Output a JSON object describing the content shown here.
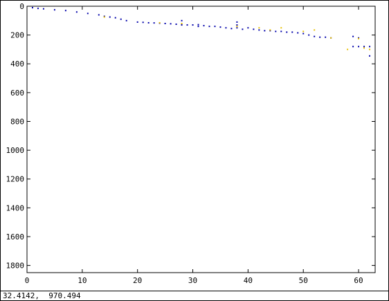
{
  "status_bar": {
    "coords": "32.4142,  970.494"
  },
  "chart_data": {
    "type": "scatter",
    "title": "",
    "xlabel": "",
    "ylabel": "",
    "xlim": [
      0,
      63
    ],
    "ylim": [
      0,
      1850
    ],
    "y_inverted": true,
    "grid": false,
    "x_ticks": [
      0,
      10,
      20,
      30,
      40,
      50,
      60
    ],
    "y_ticks": [
      0,
      200,
      400,
      600,
      800,
      1000,
      1200,
      1400,
      1600,
      1800
    ],
    "series": [
      {
        "color": "#0000aa",
        "marker": "pixel",
        "points": [
          [
            1,
            10
          ],
          [
            2,
            15
          ],
          [
            3,
            18
          ],
          [
            5,
            25
          ],
          [
            7,
            30
          ],
          [
            9,
            40
          ],
          [
            11,
            50
          ],
          [
            13,
            60
          ],
          [
            14,
            70
          ],
          [
            15,
            75
          ],
          [
            16,
            80
          ],
          [
            17,
            90
          ],
          [
            18,
            100
          ],
          [
            20,
            110
          ],
          [
            21,
            112
          ],
          [
            22,
            115
          ],
          [
            23,
            116
          ],
          [
            24,
            118
          ],
          [
            25,
            120
          ],
          [
            26,
            122
          ],
          [
            27,
            125
          ],
          [
            28,
            100
          ],
          [
            28,
            125
          ],
          [
            28,
            130
          ],
          [
            29,
            130
          ],
          [
            30,
            130
          ],
          [
            31,
            128
          ],
          [
            31,
            140
          ],
          [
            32,
            135
          ],
          [
            33,
            140
          ],
          [
            34,
            140
          ],
          [
            35,
            145
          ],
          [
            36,
            150
          ],
          [
            37,
            155
          ],
          [
            38,
            110
          ],
          [
            38,
            130
          ],
          [
            38,
            150
          ],
          [
            39,
            160
          ],
          [
            40,
            150
          ],
          [
            41,
            160
          ],
          [
            42,
            165
          ],
          [
            43,
            170
          ],
          [
            44,
            170
          ],
          [
            45,
            175
          ],
          [
            46,
            175
          ],
          [
            47,
            180
          ],
          [
            48,
            180
          ],
          [
            49,
            185
          ],
          [
            50,
            190
          ],
          [
            51,
            200
          ],
          [
            52,
            210
          ],
          [
            53,
            215
          ],
          [
            54,
            215
          ],
          [
            55,
            220
          ],
          [
            59,
            210
          ],
          [
            59,
            280
          ],
          [
            60,
            220
          ],
          [
            60,
            280
          ],
          [
            61,
            280
          ],
          [
            62,
            280
          ],
          [
            62,
            345
          ]
        ]
      },
      {
        "color": "#e8c000",
        "marker": "pixel",
        "points": [
          [
            14,
            75
          ],
          [
            24,
            115
          ],
          [
            28,
            120
          ],
          [
            38,
            140
          ],
          [
            42,
            150
          ],
          [
            44,
            165
          ],
          [
            46,
            150
          ],
          [
            50,
            175
          ],
          [
            52,
            165
          ],
          [
            55,
            220
          ],
          [
            58,
            300
          ],
          [
            60,
            225
          ],
          [
            61,
            290
          ],
          [
            62,
            300
          ]
        ]
      }
    ]
  }
}
